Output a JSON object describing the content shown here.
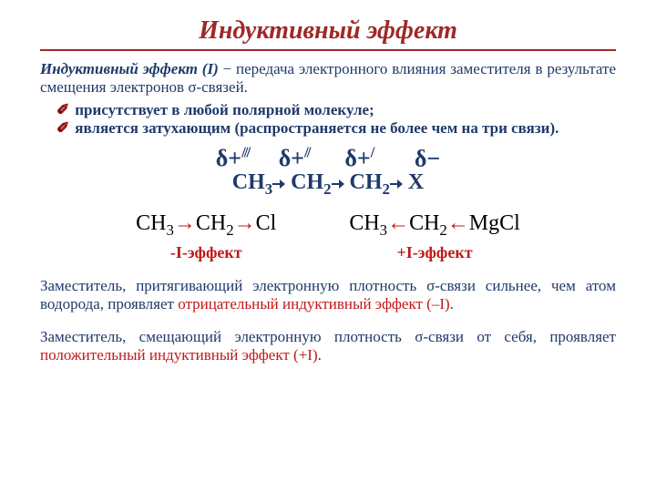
{
  "colors": {
    "title": "#a02828",
    "hr": "#a02828",
    "body": "#1f3a6b",
    "tick": "#8b0000",
    "chem": "#1f3a6b",
    "arrow_red": "#c01818",
    "black": "#000000",
    "neg_effect": "#c01818",
    "pos_effect": "#c01818"
  },
  "title": "Индуктивный эффект",
  "intro_term": "Индуктивный эффект (I)",
  "intro_rest": " − передача электронного влияния заместителя в результате смещения электронов σ-связей.",
  "bullet1": "присутствует в любой полярной молекуле;",
  "bullet2": " является затухающим (распространяется не более чем на три связи).",
  "delta_plus": "δ+",
  "delta_minus": "δ−",
  "ch3": "CH",
  "ch3_sub": "3",
  "ch2": "CH",
  "ch2_sub": "2",
  "x": "X",
  "cl": "Cl",
  "mgcl": "MgCl",
  "neg_label": "-I-эффект",
  "pos_label": "+I-эффект",
  "para1_a": "Заместитель, притягивающий электронную плотность σ-связи сильнее, чем атом водорода, проявляет ",
  "para1_b": "отрицательный индуктивный эффект (–I)",
  "para1_c": ".",
  "para2_a": "Заместитель, смещающий электронную плотность σ-связи от себя, проявляет ",
  "para2_b": "положительный индуктивный эффект (+I)",
  "para2_c": "."
}
